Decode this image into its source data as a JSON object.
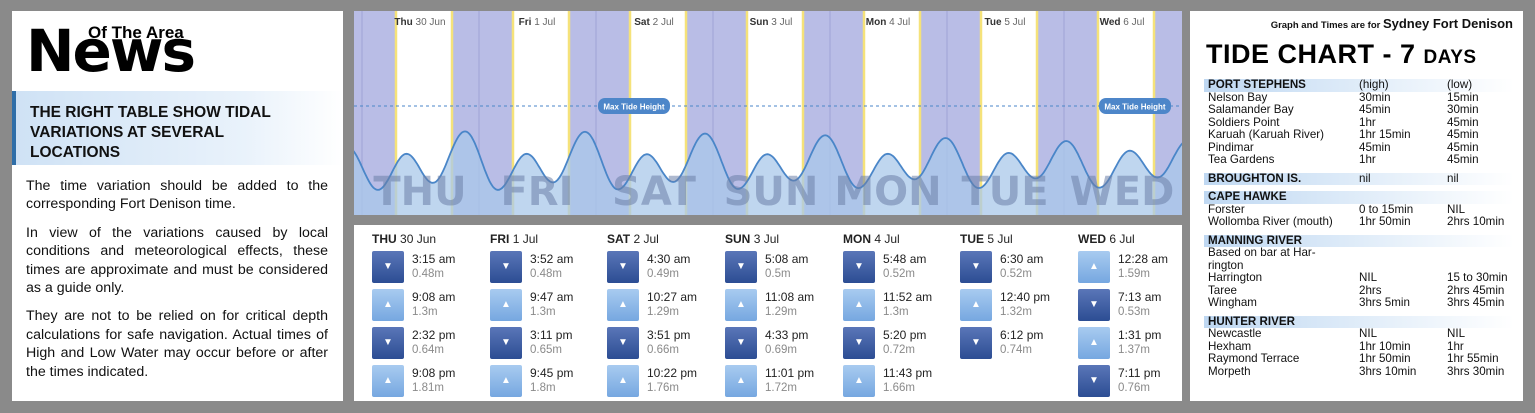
{
  "left": {
    "logo_small": "Of The Area",
    "logo_big": "News",
    "banner": [
      "THE RIGHT TABLE SHOW TIDAL",
      "VARIATIONS AT SEVERAL",
      "LOCATIONS"
    ],
    "paragraphs": [
      "The time variation should be added to the corresponding Fort Denison time.",
      "In view of the variations caused by local conditions and meteorological effects, these times are approximate and must be considered as a guide only.",
      "They are not to be relied on for critical depth calculations for safe navigation. Actual times of High and Low Water may occur before or after the times indicated."
    ]
  },
  "chart": {
    "max_label": "Max Tide Height",
    "days": [
      {
        "abbr": "Thu",
        "date": "30 Jun",
        "big": "THU"
      },
      {
        "abbr": "Fri",
        "date": "1 Jul",
        "big": "FRI"
      },
      {
        "abbr": "Sat",
        "date": "2 Jul",
        "big": "SAT"
      },
      {
        "abbr": "Sun",
        "date": "3 Jul",
        "big": "SUN"
      },
      {
        "abbr": "Mon",
        "date": "4 Jul",
        "big": "MON"
      },
      {
        "abbr": "Tue",
        "date": "5 Jul",
        "big": "TUE"
      },
      {
        "abbr": "Wed",
        "date": "6 Jul",
        "big": "WED"
      }
    ],
    "colors": {
      "night": "#b9bde6",
      "day": "#ffffff",
      "sunline": "#f5e27a",
      "wave_fill": "#a9c8ea",
      "wave_line": "#4a86c8",
      "label_bg": "#4d86c9"
    }
  },
  "tides": [
    {
      "day": "THU",
      "date": "30 Jun",
      "entries": [
        {
          "type": "low",
          "time": "3:15 am",
          "height": "0.48m"
        },
        {
          "type": "high",
          "time": "9:08 am",
          "height": "1.3m"
        },
        {
          "type": "low",
          "time": "2:32 pm",
          "height": "0.64m"
        },
        {
          "type": "high",
          "time": "9:08 pm",
          "height": "1.81m"
        }
      ]
    },
    {
      "day": "FRI",
      "date": "1 Jul",
      "entries": [
        {
          "type": "low",
          "time": "3:52 am",
          "height": "0.48m"
        },
        {
          "type": "high",
          "time": "9:47 am",
          "height": "1.3m"
        },
        {
          "type": "low",
          "time": "3:11 pm",
          "height": "0.65m"
        },
        {
          "type": "high",
          "time": "9:45 pm",
          "height": "1.8m"
        }
      ]
    },
    {
      "day": "SAT",
      "date": "2 Jul",
      "entries": [
        {
          "type": "low",
          "time": "4:30 am",
          "height": "0.49m"
        },
        {
          "type": "high",
          "time": "10:27 am",
          "height": "1.29m"
        },
        {
          "type": "low",
          "time": "3:51 pm",
          "height": "0.66m"
        },
        {
          "type": "high",
          "time": "10:22 pm",
          "height": "1.76m"
        }
      ]
    },
    {
      "day": "SUN",
      "date": "3 Jul",
      "entries": [
        {
          "type": "low",
          "time": "5:08 am",
          "height": "0.5m"
        },
        {
          "type": "high",
          "time": "11:08 am",
          "height": "1.29m"
        },
        {
          "type": "low",
          "time": "4:33 pm",
          "height": "0.69m"
        },
        {
          "type": "high",
          "time": "11:01 pm",
          "height": "1.72m"
        }
      ]
    },
    {
      "day": "MON",
      "date": "4 Jul",
      "entries": [
        {
          "type": "low",
          "time": "5:48 am",
          "height": "0.52m"
        },
        {
          "type": "high",
          "time": "11:52 am",
          "height": "1.3m"
        },
        {
          "type": "low",
          "time": "5:20 pm",
          "height": "0.72m"
        },
        {
          "type": "high",
          "time": "11:43 pm",
          "height": "1.66m"
        }
      ]
    },
    {
      "day": "TUE",
      "date": "5 Jul",
      "entries": [
        {
          "type": "low",
          "time": "6:30 am",
          "height": "0.52m"
        },
        {
          "type": "high",
          "time": "12:40 pm",
          "height": "1.32m"
        },
        {
          "type": "low",
          "time": "6:12 pm",
          "height": "0.74m"
        }
      ]
    },
    {
      "day": "WED",
      "date": "6 Jul",
      "entries": [
        {
          "type": "high",
          "time": "12:28 am",
          "height": "1.59m"
        },
        {
          "type": "low",
          "time": "7:13 am",
          "height": "0.53m"
        },
        {
          "type": "high",
          "time": "1:31 pm",
          "height": "1.37m"
        },
        {
          "type": "low",
          "time": "7:11 pm",
          "height": "0.76m"
        }
      ]
    }
  ],
  "right": {
    "note_prefix": "Graph and Times are for",
    "note_place": "Sydney Fort Denison",
    "title_main": "TIDE CHART - 7",
    "title_suffix": "DAYS",
    "rows": [
      {
        "kind": "section",
        "c1": "PORT STEPHENS",
        "c2": "(high)",
        "c3": "(low)"
      },
      {
        "kind": "row",
        "c1": "Nelson Bay",
        "c2": "30min",
        "c3": "15min"
      },
      {
        "kind": "row",
        "c1": "Salamander Bay",
        "c2": "45min",
        "c3": "30min"
      },
      {
        "kind": "row",
        "c1": "Soldiers Point",
        "c2": "1hr",
        "c3": "45min"
      },
      {
        "kind": "row",
        "c1": "Karuah (Karuah River)",
        "c2": "1hr 15min",
        "c3": "45min"
      },
      {
        "kind": "row",
        "c1": "Pindimar",
        "c2": "45min",
        "c3": "45min"
      },
      {
        "kind": "row",
        "c1": "Tea Gardens",
        "c2": "1hr",
        "c3": "45min"
      },
      {
        "kind": "section",
        "c1": "BROUGHTON IS.",
        "c2": "nil",
        "c3": "nil"
      },
      {
        "kind": "section",
        "c1": "CAPE HAWKE",
        "c2": "",
        "c3": ""
      },
      {
        "kind": "row",
        "c1": "Forster",
        "c2": "0 to 15min",
        "c3": "NIL"
      },
      {
        "kind": "row",
        "c1": "Wollomba River (mouth)",
        "c2": "1hr 50min",
        "c3": "2hrs 10min"
      },
      {
        "kind": "section",
        "c1": "MANNING RIVER",
        "c2": "",
        "c3": ""
      },
      {
        "kind": "row",
        "c1": "Based on bar at Har-",
        "c2": "",
        "c3": ""
      },
      {
        "kind": "row",
        "c1": "rington",
        "c2": "",
        "c3": ""
      },
      {
        "kind": "row",
        "c1": "Harrington",
        "c2": "NIL",
        "c3": "15 to 30min"
      },
      {
        "kind": "row",
        "c1": "Taree",
        "c2": "2hrs",
        "c3": "2hrs 45min"
      },
      {
        "kind": "row",
        "c1": "Wingham",
        "c2": "3hrs 5min",
        "c3": "3hrs 45min"
      },
      {
        "kind": "section",
        "c1": "HUNTER RIVER",
        "c2": "",
        "c3": ""
      },
      {
        "kind": "row",
        "c1": "Newcastle",
        "c2": "NIL",
        "c3": "NIL"
      },
      {
        "kind": "row",
        "c1": "Hexham",
        "c2": "1hr 10min",
        "c3": "1hr"
      },
      {
        "kind": "row",
        "c1": "Raymond Terrace",
        "c2": "1hr 50min",
        "c3": "1hr 55min"
      },
      {
        "kind": "row",
        "c1": "Morpeth",
        "c2": "3hrs 10min",
        "c3": "3hrs 30min"
      }
    ]
  }
}
